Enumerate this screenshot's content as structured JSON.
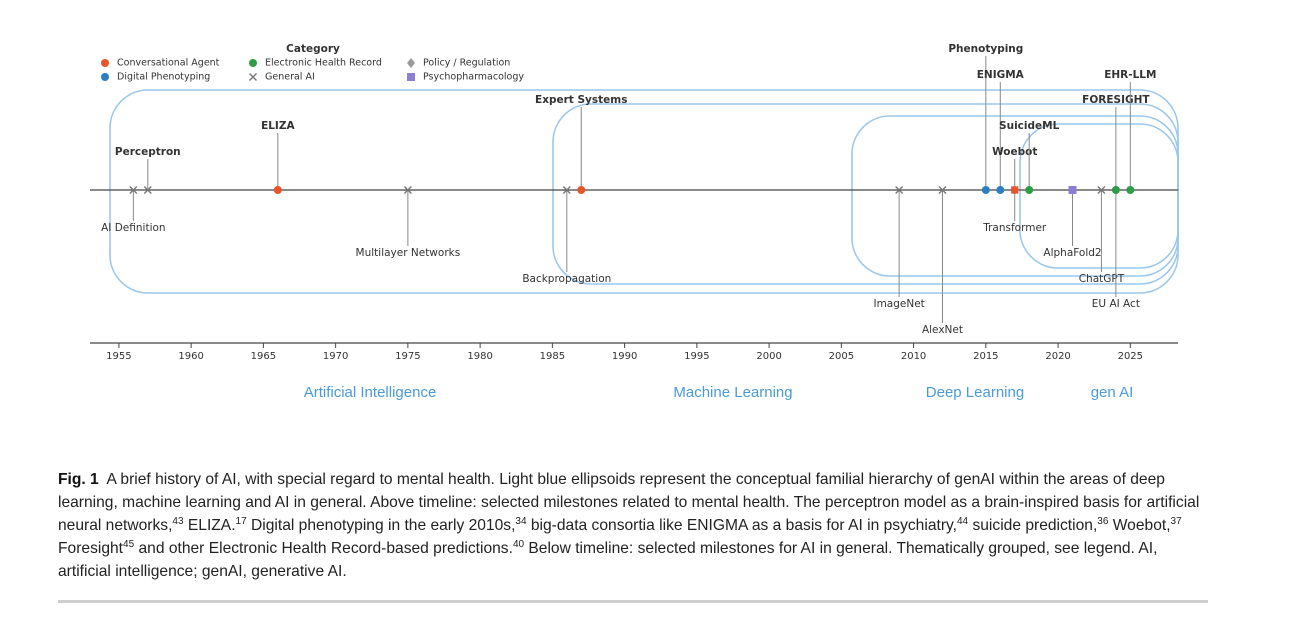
{
  "chart_data": {
    "type": "timeline",
    "legend_title": "Category",
    "categories": [
      {
        "name": "Conversational Agent",
        "color": "#e8552b",
        "marker": "circle"
      },
      {
        "name": "Digital Phenotyping",
        "color": "#2b7fc3",
        "marker": "circle"
      },
      {
        "name": "Electronic Health Record",
        "color": "#2e9e46",
        "marker": "circle"
      },
      {
        "name": "General AI",
        "color": "#7a7a7a",
        "marker": "x"
      },
      {
        "name": "Policy / Regulation",
        "color": "#9a9a9a",
        "marker": "diamond"
      },
      {
        "name": "Psychopharmacology",
        "color": "#8a7fd3",
        "marker": "square"
      }
    ],
    "events": [
      {
        "label": "Perceptron",
        "year": 1957,
        "category": "General AI",
        "side": "above"
      },
      {
        "label": "AI Definition",
        "year": 1956,
        "category": "General AI",
        "side": "below"
      },
      {
        "label": "ELIZA",
        "year": 1966,
        "category": "Conversational Agent",
        "side": "above"
      },
      {
        "label": "Multilayer Networks",
        "year": 1975,
        "category": "General AI",
        "side": "below"
      },
      {
        "label": "Expert Systems",
        "year": 1987,
        "category": "Conversational Agent",
        "side": "above"
      },
      {
        "label": "Backpropagation",
        "year": 1986,
        "category": "General AI",
        "side": "below"
      },
      {
        "label": "ImageNet",
        "year": 2009,
        "category": "General AI",
        "side": "below"
      },
      {
        "label": "AlexNet",
        "year": 2012,
        "category": "General AI",
        "side": "below"
      },
      {
        "label": "Phenotyping",
        "year": 2015,
        "category": "Digital Phenotyping",
        "side": "above"
      },
      {
        "label": "ENIGMA",
        "year": 2016,
        "category": "Digital Phenotyping",
        "side": "above"
      },
      {
        "label": "Transformer",
        "year": 2017,
        "category": "General AI",
        "side": "below"
      },
      {
        "label": "Woebot",
        "year": 2017,
        "category": "Conversational Agent",
        "side": "above"
      },
      {
        "label": "SuicideML",
        "year": 2018,
        "category": "Electronic Health Record",
        "side": "above"
      },
      {
        "label": "AlphaFold2",
        "year": 2021,
        "category": "Psychopharmacology",
        "side": "below"
      },
      {
        "label": "ChatGPT",
        "year": 2023,
        "category": "General AI",
        "side": "below"
      },
      {
        "label": "EU AI Act",
        "year": 2024,
        "category": "Policy / Regulation",
        "side": "below"
      },
      {
        "label": "FORESIGHT",
        "year": 2024,
        "category": "Electronic Health Record",
        "side": "above"
      },
      {
        "label": "EHR-LLM",
        "year": 2025,
        "category": "Electronic Health Record",
        "side": "above"
      }
    ],
    "xlim": [
      1953,
      2028.3
    ],
    "xticks": [
      1955,
      1960,
      1965,
      1970,
      1975,
      1980,
      1985,
      1990,
      1995,
      2000,
      2005,
      2010,
      2015,
      2020,
      2025
    ],
    "eras": [
      "Artificial Intelligence",
      "Machine Learning",
      "Deep Learning",
      "gen AI"
    ]
  },
  "caption": {
    "label": "Fig. 1",
    "parts": [
      {
        "text": "A brief history of AI, with special regard to mental health. Light blue ellipsoids represent the conceptual familial hierarchy of genAI within the areas of deep learning, machine learning and AI in general. Above timeline: selected milestones related to mental health. The perceptron model as a brain-inspired basis for artificial neural networks,"
      },
      {
        "sup": "43"
      },
      {
        "text": " ELIZA."
      },
      {
        "sup": "17"
      },
      {
        "text": " Digital phenotyping in the early 2010s,"
      },
      {
        "sup": "34"
      },
      {
        "text": " big-data consortia like ENIGMA as a basis for AI in psychiatry,"
      },
      {
        "sup": "44"
      },
      {
        "text": " suicide prediction,"
      },
      {
        "sup": "36"
      },
      {
        "text": " Woebot,"
      },
      {
        "sup": "37"
      },
      {
        "text": " Foresight"
      },
      {
        "sup": "45"
      },
      {
        "text": " and other Electronic Health Record-based predictions."
      },
      {
        "sup": "40"
      },
      {
        "text": " Below timeline: selected milestones for AI in general. Thematically grouped, see legend. AI, artificial intelligence; genAI, generative AI."
      }
    ]
  }
}
